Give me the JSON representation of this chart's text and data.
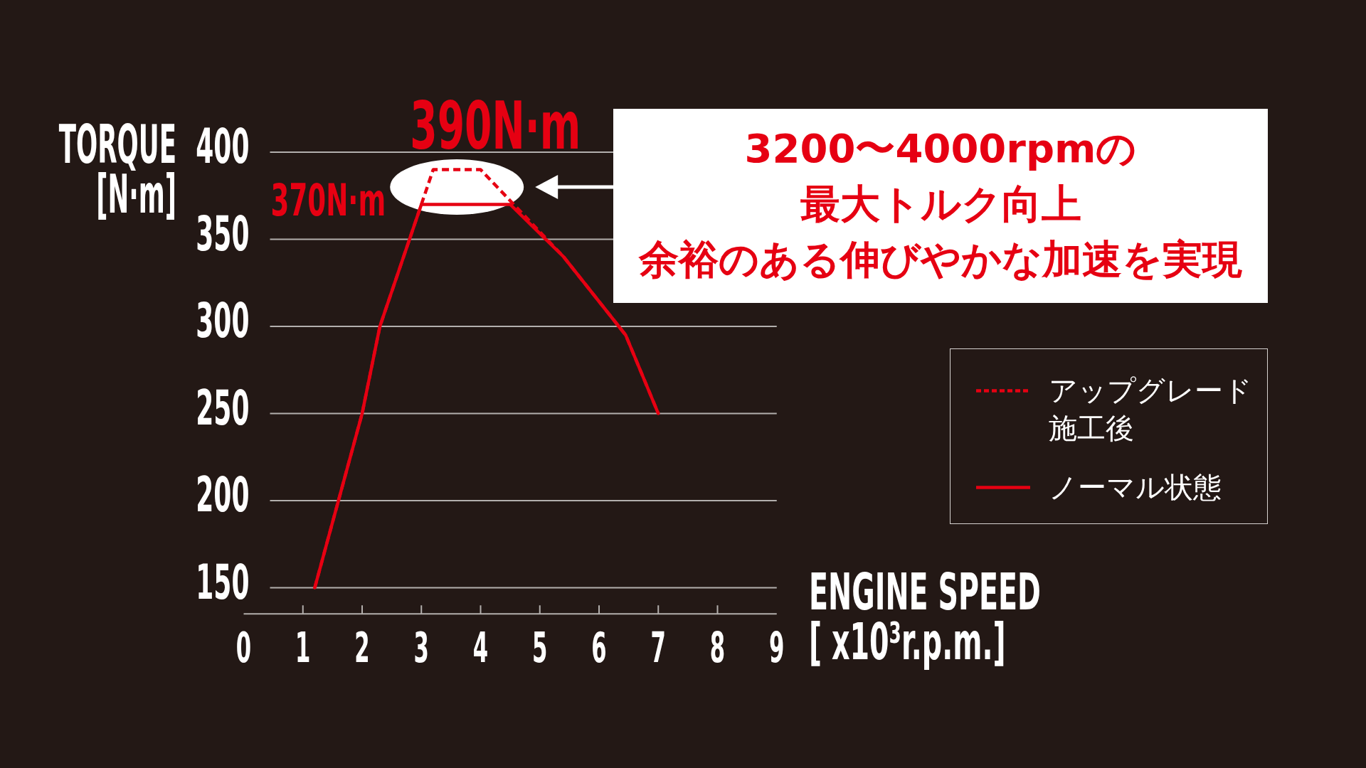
{
  "chart_data": {
    "type": "line",
    "xlabel": "ENGINE SPEED [ x10³r.p.m.]",
    "ylabel": "TORQUE [N·m]",
    "annotations": [
      {
        "text": "390N·m",
        "x": 3.6,
        "y": 390
      },
      {
        "text": "370N·m",
        "x": 3,
        "y": 370
      },
      "3200〜4000rpmの",
      "最大トルク向上",
      "余裕のある伸びやかな加速を実現"
    ],
    "series": [
      {
        "name": "アップグレード施工後",
        "color": "#e60012",
        "line_style": "dashed",
        "x": [
          1.2,
          2,
          2.3,
          3.2,
          4,
          5.4,
          6.45,
          7
        ],
        "values": [
          150,
          250,
          300,
          390,
          390,
          340,
          295,
          250
        ]
      },
      {
        "name": "ノーマル状態",
        "color": "#e60012",
        "line_style": "solid",
        "x": [
          1.2,
          2,
          2.3,
          3,
          4.5,
          5.4,
          6.45,
          7
        ],
        "values": [
          150,
          250,
          300,
          370,
          370,
          340,
          295,
          250
        ]
      }
    ],
    "xlim": [
      0,
      9
    ],
    "xticks": [
      0,
      1,
      2,
      3,
      4,
      5,
      6,
      7,
      8,
      9
    ],
    "ylim": [
      135,
      400
    ],
    "yticks": [
      150,
      200,
      250,
      300,
      350,
      400
    ],
    "grid": "y",
    "legend": "right"
  }
}
